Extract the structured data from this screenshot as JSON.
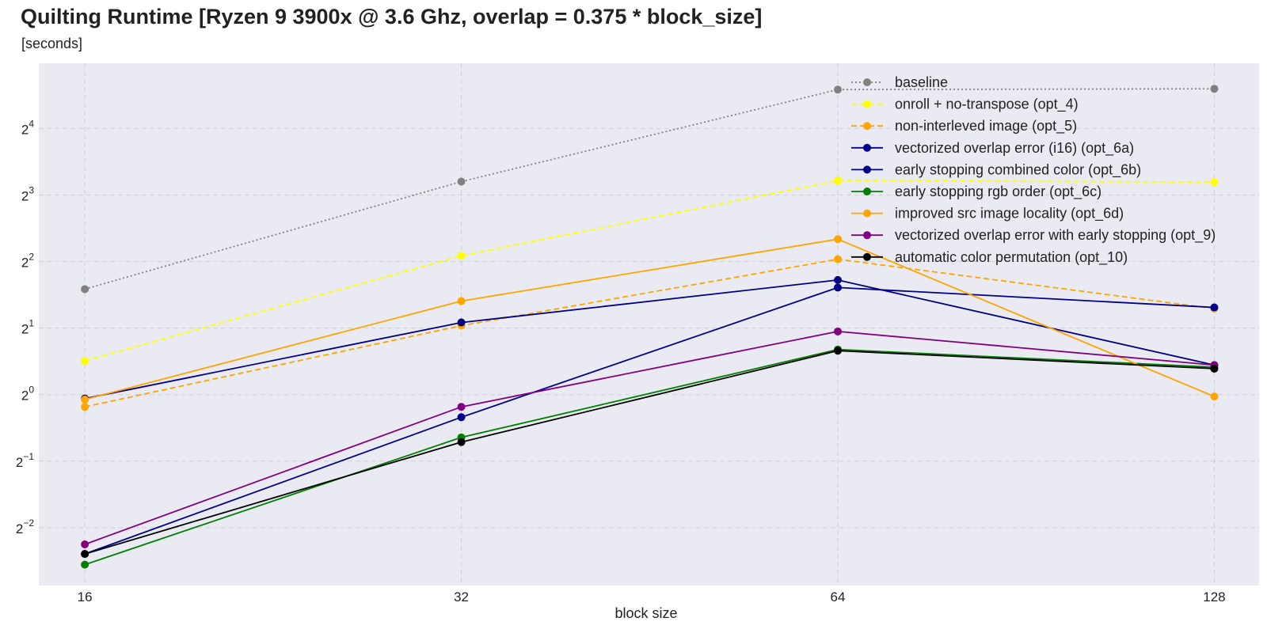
{
  "header": {
    "title": "Quilting Runtime [Ryzen 9 3900x @ 3.6 Ghz, overlap = 0.375 * block_size]",
    "subtitle": "[seconds]"
  },
  "chart_data": {
    "type": "line",
    "title": "Quilting Runtime [Ryzen 9 3900x @ 3.6 Ghz, overlap = 0.375 * block_size]",
    "subtitle": "[seconds]",
    "xlabel": "block size",
    "ylabel": "",
    "x_scale": "log2",
    "y_scale": "log2",
    "x": [
      16,
      32,
      64,
      128
    ],
    "x_tick_labels": [
      "16",
      "32",
      "64",
      "128"
    ],
    "xlim": [
      14.7,
      139
    ],
    "y_tick_exponents": [
      -2,
      -1,
      0,
      1,
      2,
      3,
      4
    ],
    "ylim_exponents": [
      -2.87,
      4.98
    ],
    "grid": true,
    "legend_position": "top-right",
    "background": "#eaeaf2",
    "series": [
      {
        "name": "baseline",
        "color": "#808080",
        "dash": "dotted",
        "values": [
          3.0,
          9.2,
          24.0,
          24.2
        ]
      },
      {
        "name": "onroll + no-transpose (opt_4)",
        "color": "#ffff00",
        "dash": "dashed",
        "values": [
          1.42,
          4.25,
          9.3,
          9.15
        ]
      },
      {
        "name": "non-interleved image (opt_5)",
        "color": "#ffa500",
        "dash": "dashed",
        "values": [
          0.88,
          2.05,
          4.1,
          2.45
        ]
      },
      {
        "name": "vectorized overlap error (i16) (opt_6a)",
        "color": "#00008b",
        "dash": "solid",
        "values": [
          0.19,
          0.79,
          3.05,
          2.48
        ]
      },
      {
        "name": "early stopping combined color (opt_6b)",
        "color": "#000080",
        "dash": "solid",
        "values": [
          0.96,
          2.12,
          3.3,
          1.36
        ]
      },
      {
        "name": "early stopping rgb order (opt_6c)",
        "color": "#008000",
        "dash": "solid",
        "values": [
          0.17,
          0.64,
          1.6,
          1.33
        ]
      },
      {
        "name": "improved src image locality (opt_6d)",
        "color": "#ffa500",
        "dash": "solid",
        "values": [
          0.95,
          2.65,
          5.05,
          0.98
        ]
      },
      {
        "name": "vectorized overlap error with early stopping (opt_9)",
        "color": "#800080",
        "dash": "solid",
        "values": [
          0.21,
          0.88,
          1.93,
          1.36
        ]
      },
      {
        "name": "automatic color permutation (opt_10)",
        "color": "#000000",
        "dash": "solid",
        "values": [
          0.19,
          0.61,
          1.58,
          1.31
        ]
      }
    ]
  }
}
